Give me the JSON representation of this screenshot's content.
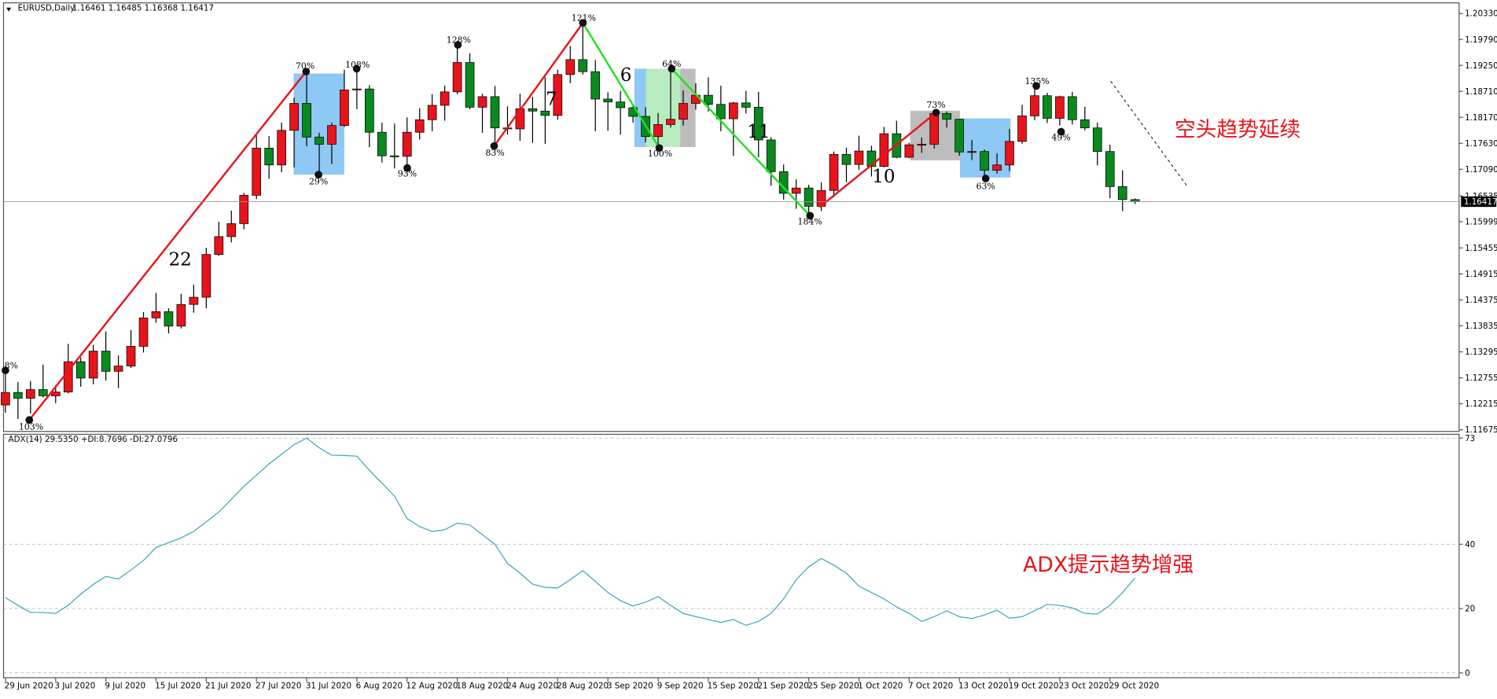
{
  "chart_data": [
    {
      "type": "candlestick",
      "title": "EURUSD,Daily",
      "ohlc_label": "1.16461 1.16485 1.16368 1.16417",
      "up_color": "#e8141b",
      "down_color": "#0a8a1e",
      "categories": [
        "29 Jun 2020",
        null,
        null,
        null,
        "3 Jul 2020",
        null,
        null,
        null,
        "9 Jul 2020",
        null,
        null,
        null,
        "15 Jul 2020",
        null,
        null,
        null,
        "21 Jul 2020",
        null,
        null,
        null,
        "27 Jul 2020",
        null,
        null,
        null,
        "31 Jul 2020",
        null,
        null,
        null,
        "6 Aug 2020",
        null,
        null,
        null,
        "12 Aug 2020",
        null,
        null,
        null,
        "18 Aug 2020",
        null,
        null,
        null,
        "24 Aug 2020",
        null,
        null,
        null,
        "28 Aug 2020",
        null,
        null,
        null,
        "3 Sep 2020",
        null,
        null,
        null,
        "9 Sep 2020",
        null,
        null,
        null,
        "15 Sep 2020",
        null,
        null,
        null,
        "21 Sep 2020",
        null,
        null,
        null,
        "25 Sep 2020",
        null,
        null,
        null,
        "1 Oct 2020",
        null,
        null,
        null,
        "7 Oct 2020",
        null,
        null,
        null,
        "13 Oct 2020",
        null,
        null,
        null,
        "19 Oct 2020",
        null,
        null,
        null,
        "23 Oct 2020",
        null,
        null,
        null,
        "29 Oct 2020",
        null,
        null
      ],
      "open": [
        1.1219,
        1.1245,
        1.1233,
        1.1251,
        1.1238,
        1.1246,
        1.1309,
        1.1275,
        1.1331,
        1.1289,
        1.13,
        1.1341,
        1.14,
        1.1413,
        1.1383,
        1.1428,
        1.1443,
        1.1532,
        1.1569,
        1.1596,
        1.1655,
        1.1753,
        1.1718,
        1.179,
        1.1846,
        1.1776,
        1.1761,
        1.18,
        1.1874,
        1.1876,
        1.1786,
        1.1737,
        1.1736,
        1.1786,
        1.1812,
        1.1842,
        1.187,
        1.1931,
        1.1838,
        1.186,
        1.1795,
        1.1793,
        1.1835,
        1.183,
        1.1821,
        1.1906,
        1.1937,
        1.1912,
        1.1855,
        1.1849,
        1.1837,
        1.1819,
        1.1777,
        1.1802,
        1.1813,
        1.1846,
        1.1863,
        1.1844,
        1.1814,
        1.1847,
        1.1838,
        1.177,
        1.1704,
        1.1659,
        1.167,
        1.1632,
        1.1665,
        1.174,
        1.1719,
        1.1747,
        1.1715,
        1.1783,
        1.1734,
        1.176,
        1.1761,
        1.1825,
        1.1813,
        1.1745,
        1.1746,
        1.1707,
        1.1718,
        1.1767,
        1.182,
        1.1862,
        1.1815,
        1.186,
        1.1812,
        1.1795,
        1.1746,
        1.1673,
        1.16461
      ],
      "high": [
        1.1289,
        1.1267,
        1.1269,
        1.1303,
        1.126,
        1.1346,
        1.1318,
        1.1344,
        1.1372,
        1.1322,
        1.1375,
        1.1412,
        1.1452,
        1.142,
        1.145,
        1.1469,
        1.1546,
        1.16,
        1.1623,
        1.166,
        1.178,
        1.1778,
        1.1806,
        1.1858,
        1.1909,
        1.1785,
        1.1806,
        1.1916,
        1.1917,
        1.1884,
        1.1806,
        1.1804,
        1.1817,
        1.1836,
        1.1865,
        1.1883,
        1.1966,
        1.195,
        1.1866,
        1.1882,
        1.184,
        1.1866,
        1.186,
        1.19,
        1.1916,
        1.1965,
        1.2011,
        1.1936,
        1.1869,
        1.1872,
        1.1845,
        1.1838,
        1.1826,
        1.1917,
        1.1873,
        1.1888,
        1.19,
        1.1883,
        1.1849,
        1.1872,
        1.187,
        1.1776,
        1.1719,
        1.1688,
        1.1677,
        1.1682,
        1.1746,
        1.1754,
        1.1779,
        1.1758,
        1.1797,
        1.181,
        1.1764,
        1.1775,
        1.1831,
        1.1829,
        1.1814,
        1.177,
        1.175,
        1.1742,
        1.1793,
        1.1843,
        1.1881,
        1.1868,
        1.1862,
        1.187,
        1.1839,
        1.1806,
        1.176,
        1.1707,
        1.16485
      ],
      "low": [
        1.1203,
        1.119,
        1.1201,
        1.1235,
        1.1223,
        1.1243,
        1.1257,
        1.1262,
        1.127,
        1.1254,
        1.1296,
        1.1328,
        1.139,
        1.1368,
        1.1378,
        1.1411,
        1.142,
        1.1529,
        1.1557,
        1.1584,
        1.1647,
        1.1689,
        1.1703,
        1.1713,
        1.1757,
        1.1696,
        1.172,
        1.1797,
        1.1834,
        1.1755,
        1.1723,
        1.1711,
        1.171,
        1.1771,
        1.1788,
        1.181,
        1.1865,
        1.1834,
        1.1785,
        1.1753,
        1.1781,
        1.1768,
        1.1764,
        1.1762,
        1.1812,
        1.1888,
        1.1906,
        1.1788,
        1.1789,
        1.1781,
        1.1806,
        1.1765,
        1.1752,
        1.1796,
        1.18,
        1.1833,
        1.1829,
        1.1788,
        1.1737,
        1.1825,
        1.1734,
        1.1675,
        1.1646,
        1.1627,
        1.1612,
        1.1622,
        1.1651,
        1.1682,
        1.1708,
        1.1694,
        1.1713,
        1.1732,
        1.1732,
        1.1743,
        1.1752,
        1.1796,
        1.1737,
        1.1728,
        1.1688,
        1.17,
        1.1705,
        1.1762,
        1.1811,
        1.1805,
        1.18,
        1.1802,
        1.179,
        1.1717,
        1.1649,
        1.1622,
        1.16368
      ],
      "close": [
        1.1245,
        1.1233,
        1.1251,
        1.1238,
        1.1246,
        1.1309,
        1.1275,
        1.1331,
        1.1289,
        1.13,
        1.1341,
        1.14,
        1.1413,
        1.1383,
        1.1428,
        1.1443,
        1.1532,
        1.1569,
        1.1596,
        1.1655,
        1.1753,
        1.1718,
        1.179,
        1.1846,
        1.1776,
        1.1761,
        1.18,
        1.1874,
        1.1876,
        1.1786,
        1.1737,
        1.1736,
        1.1786,
        1.1812,
        1.1842,
        1.187,
        1.1931,
        1.1838,
        1.186,
        1.1795,
        1.1793,
        1.1835,
        1.183,
        1.1821,
        1.1906,
        1.1937,
        1.1912,
        1.1855,
        1.1849,
        1.1837,
        1.1819,
        1.1777,
        1.1802,
        1.1813,
        1.1846,
        1.1863,
        1.1844,
        1.1814,
        1.1847,
        1.1838,
        1.177,
        1.1704,
        1.1659,
        1.167,
        1.1632,
        1.1665,
        1.174,
        1.1719,
        1.1747,
        1.1715,
        1.1783,
        1.1734,
        1.176,
        1.1761,
        1.1825,
        1.1813,
        1.1745,
        1.1746,
        1.1707,
        1.1718,
        1.1767,
        1.182,
        1.1862,
        1.1815,
        1.186,
        1.1812,
        1.1795,
        1.1746,
        1.1673,
        1.16461,
        1.16417
      ],
      "last_price": 1.16417,
      "ylim": [
        1.1164,
        1.2055
      ],
      "yticks": [
        {
          "value": 1.2033,
          "label": "1.20330"
        },
        {
          "value": 1.1979,
          "label": "1.19790"
        },
        {
          "value": 1.1925,
          "label": "1.19250"
        },
        {
          "value": 1.1871,
          "label": "1.18710"
        },
        {
          "value": 1.1817,
          "label": "1.18170"
        },
        {
          "value": 1.1763,
          "label": "1.17630"
        },
        {
          "value": 1.1709,
          "label": "1.17090"
        },
        {
          "value": 1.16535,
          "label": "1.16535"
        },
        {
          "value": 1.15999,
          "label": "1.15999"
        },
        {
          "value": 1.15455,
          "label": "1.15455"
        },
        {
          "value": 1.14915,
          "label": "1.14915"
        },
        {
          "value": 1.14375,
          "label": "1.14375"
        },
        {
          "value": 1.13835,
          "label": "1.13835"
        },
        {
          "value": 1.13295,
          "label": "1.13295"
        },
        {
          "value": 1.12755,
          "label": "1.12755"
        },
        {
          "value": 1.12215,
          "label": "1.12215"
        },
        {
          "value": 1.11675,
          "label": "1.11675"
        }
      ],
      "annotations": [
        "22",
        "7",
        "6",
        "11",
        "10",
        "70%",
        "108%",
        "128%",
        "121%",
        "64%",
        "100%",
        "29%",
        "93%",
        "83%",
        "184%",
        "73%",
        "135%",
        "49%",
        "63%",
        "103%",
        "8%",
        "空头趋势延续"
      ]
    },
    {
      "type": "line",
      "title": "ADX(14) 29.5350 +DI:8.7696 -DI:27.0796",
      "color": "#3aa7b5",
      "values": [
        23.4,
        21,
        18.8,
        18.8,
        18.5,
        21,
        24.5,
        27.5,
        30,
        29.2,
        32,
        35,
        39,
        40.5,
        42,
        44,
        47,
        50,
        54,
        58,
        61.5,
        65,
        68,
        71,
        73,
        70,
        67.7,
        67.6,
        67.4,
        63,
        59,
        55,
        48,
        45.5,
        44,
        44.5,
        46.6,
        46,
        43,
        40,
        34,
        31,
        27.6,
        26.6,
        26.4,
        29,
        31.8,
        28.5,
        25,
        22.5,
        20.8,
        22,
        23.7,
        21,
        18.5,
        17.5,
        16.6,
        15.7,
        16.6,
        14.8,
        16,
        18.5,
        23,
        29,
        33,
        35.6,
        33.5,
        31,
        27,
        25,
        23,
        20.5,
        18.5,
        16,
        17.5,
        19.3,
        17.5,
        16.9,
        18,
        19.5,
        17,
        17.5,
        19.3,
        21.3,
        21,
        20.2,
        18.5,
        18.3,
        21,
        25,
        29.535
      ],
      "ylim": [
        -1.5,
        74.2
      ],
      "yticks": [
        0,
        20,
        40,
        73
      ],
      "grid": true,
      "annotations": [
        "ADX提示趋势增强"
      ]
    }
  ]
}
